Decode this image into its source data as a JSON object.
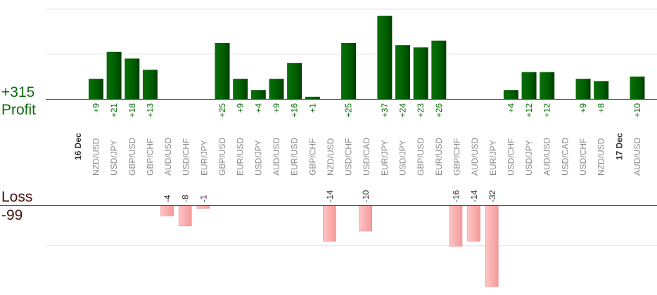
{
  "profit": {
    "label": "Profit",
    "total": "+315"
  },
  "loss": {
    "label": "Loss",
    "total": "-99"
  },
  "chart_data": {
    "type": "bar",
    "title": "",
    "xlabel": "",
    "ylabel": "",
    "grid": true,
    "colors": {
      "profit": "#006400",
      "loss": "#ffb0b0",
      "profit_text": "#0b6a0b",
      "axis": "#555555"
    },
    "categories": [
      "16 Dec",
      "NZD/USD",
      "USD/JPY",
      "GBP/USD",
      "GBP/CHF",
      "AUD/USD",
      "USD/CHF",
      "EUR/JPY",
      "GBP/USD",
      "EUR/USD",
      "USD/JPY",
      "AUD/USD",
      "EUR/USD",
      "GBP/CHF",
      "NZD/USD",
      "USD/CHF",
      "USD/CAD",
      "EUR/JPY",
      "USD/JPY",
      "GBP/USD",
      "EUR/USD",
      "GBP/CHF",
      "AUD/USD",
      "EUR/JPY",
      "USD/CHF",
      "USD/JPY",
      "AUD/USD",
      "USD/CAD",
      "USD/CHF",
      "NZD/USD",
      "17 Dec",
      "AUD/USD"
    ],
    "date_markers": [
      0,
      30
    ],
    "values": [
      null,
      9,
      21,
      18,
      13,
      -4,
      -8,
      -1,
      25,
      9,
      4,
      9,
      16,
      1,
      -14,
      25,
      -10,
      37,
      24,
      23,
      26,
      -16,
      -14,
      -32,
      4,
      12,
      12,
      null,
      9,
      8,
      null,
      10
    ],
    "labels": [
      "",
      "+9",
      "+21",
      "+18",
      "+13",
      "-4",
      "-8",
      "-1",
      "+25",
      "+9",
      "+4",
      "+9",
      "+16",
      "+1",
      "-14",
      "+25",
      "-10",
      "+37",
      "+24",
      "+23",
      "+26",
      "-16",
      "-14",
      "-32",
      "+4",
      "+12",
      "+12",
      "",
      "+9",
      "+8",
      "",
      "+10"
    ]
  }
}
